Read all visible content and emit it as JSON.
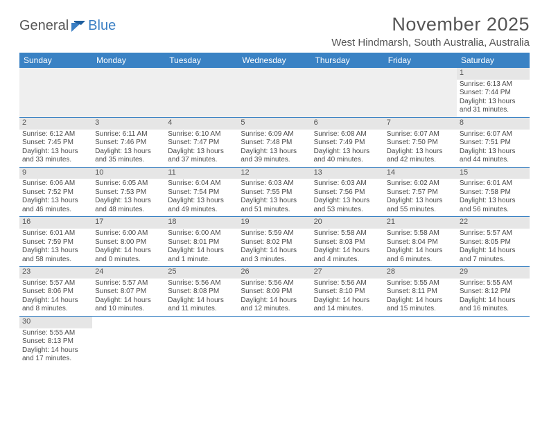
{
  "logo": {
    "text1": "General",
    "text2": "Blue"
  },
  "title": "November 2025",
  "location": "West Hindmarsh, South Australia, Australia",
  "dayNames": [
    "Sunday",
    "Monday",
    "Tuesday",
    "Wednesday",
    "Thursday",
    "Friday",
    "Saturday"
  ],
  "colors": {
    "header_bg": "#3a82c4",
    "header_text": "#ffffff",
    "title_text": "#555555",
    "body_text": "#4a4a4a",
    "daynum_bg": "#e6e6e6",
    "blank_bg": "#efefef",
    "border": "#3a82c4"
  },
  "weeks": [
    [
      {
        "blank": true
      },
      {
        "blank": true
      },
      {
        "blank": true
      },
      {
        "blank": true
      },
      {
        "blank": true
      },
      {
        "blank": true
      },
      {
        "day": "1",
        "sunrise": "Sunrise: 6:13 AM",
        "sunset": "Sunset: 7:44 PM",
        "daylight": "Daylight: 13 hours and 31 minutes."
      }
    ],
    [
      {
        "day": "2",
        "sunrise": "Sunrise: 6:12 AM",
        "sunset": "Sunset: 7:45 PM",
        "daylight": "Daylight: 13 hours and 33 minutes."
      },
      {
        "day": "3",
        "sunrise": "Sunrise: 6:11 AM",
        "sunset": "Sunset: 7:46 PM",
        "daylight": "Daylight: 13 hours and 35 minutes."
      },
      {
        "day": "4",
        "sunrise": "Sunrise: 6:10 AM",
        "sunset": "Sunset: 7:47 PM",
        "daylight": "Daylight: 13 hours and 37 minutes."
      },
      {
        "day": "5",
        "sunrise": "Sunrise: 6:09 AM",
        "sunset": "Sunset: 7:48 PM",
        "daylight": "Daylight: 13 hours and 39 minutes."
      },
      {
        "day": "6",
        "sunrise": "Sunrise: 6:08 AM",
        "sunset": "Sunset: 7:49 PM",
        "daylight": "Daylight: 13 hours and 40 minutes."
      },
      {
        "day": "7",
        "sunrise": "Sunrise: 6:07 AM",
        "sunset": "Sunset: 7:50 PM",
        "daylight": "Daylight: 13 hours and 42 minutes."
      },
      {
        "day": "8",
        "sunrise": "Sunrise: 6:07 AM",
        "sunset": "Sunset: 7:51 PM",
        "daylight": "Daylight: 13 hours and 44 minutes."
      }
    ],
    [
      {
        "day": "9",
        "sunrise": "Sunrise: 6:06 AM",
        "sunset": "Sunset: 7:52 PM",
        "daylight": "Daylight: 13 hours and 46 minutes."
      },
      {
        "day": "10",
        "sunrise": "Sunrise: 6:05 AM",
        "sunset": "Sunset: 7:53 PM",
        "daylight": "Daylight: 13 hours and 48 minutes."
      },
      {
        "day": "11",
        "sunrise": "Sunrise: 6:04 AM",
        "sunset": "Sunset: 7:54 PM",
        "daylight": "Daylight: 13 hours and 49 minutes."
      },
      {
        "day": "12",
        "sunrise": "Sunrise: 6:03 AM",
        "sunset": "Sunset: 7:55 PM",
        "daylight": "Daylight: 13 hours and 51 minutes."
      },
      {
        "day": "13",
        "sunrise": "Sunrise: 6:03 AM",
        "sunset": "Sunset: 7:56 PM",
        "daylight": "Daylight: 13 hours and 53 minutes."
      },
      {
        "day": "14",
        "sunrise": "Sunrise: 6:02 AM",
        "sunset": "Sunset: 7:57 PM",
        "daylight": "Daylight: 13 hours and 55 minutes."
      },
      {
        "day": "15",
        "sunrise": "Sunrise: 6:01 AM",
        "sunset": "Sunset: 7:58 PM",
        "daylight": "Daylight: 13 hours and 56 minutes."
      }
    ],
    [
      {
        "day": "16",
        "sunrise": "Sunrise: 6:01 AM",
        "sunset": "Sunset: 7:59 PM",
        "daylight": "Daylight: 13 hours and 58 minutes."
      },
      {
        "day": "17",
        "sunrise": "Sunrise: 6:00 AM",
        "sunset": "Sunset: 8:00 PM",
        "daylight": "Daylight: 14 hours and 0 minutes."
      },
      {
        "day": "18",
        "sunrise": "Sunrise: 6:00 AM",
        "sunset": "Sunset: 8:01 PM",
        "daylight": "Daylight: 14 hours and 1 minute."
      },
      {
        "day": "19",
        "sunrise": "Sunrise: 5:59 AM",
        "sunset": "Sunset: 8:02 PM",
        "daylight": "Daylight: 14 hours and 3 minutes."
      },
      {
        "day": "20",
        "sunrise": "Sunrise: 5:58 AM",
        "sunset": "Sunset: 8:03 PM",
        "daylight": "Daylight: 14 hours and 4 minutes."
      },
      {
        "day": "21",
        "sunrise": "Sunrise: 5:58 AM",
        "sunset": "Sunset: 8:04 PM",
        "daylight": "Daylight: 14 hours and 6 minutes."
      },
      {
        "day": "22",
        "sunrise": "Sunrise: 5:57 AM",
        "sunset": "Sunset: 8:05 PM",
        "daylight": "Daylight: 14 hours and 7 minutes."
      }
    ],
    [
      {
        "day": "23",
        "sunrise": "Sunrise: 5:57 AM",
        "sunset": "Sunset: 8:06 PM",
        "daylight": "Daylight: 14 hours and 8 minutes."
      },
      {
        "day": "24",
        "sunrise": "Sunrise: 5:57 AM",
        "sunset": "Sunset: 8:07 PM",
        "daylight": "Daylight: 14 hours and 10 minutes."
      },
      {
        "day": "25",
        "sunrise": "Sunrise: 5:56 AM",
        "sunset": "Sunset: 8:08 PM",
        "daylight": "Daylight: 14 hours and 11 minutes."
      },
      {
        "day": "26",
        "sunrise": "Sunrise: 5:56 AM",
        "sunset": "Sunset: 8:09 PM",
        "daylight": "Daylight: 14 hours and 12 minutes."
      },
      {
        "day": "27",
        "sunrise": "Sunrise: 5:56 AM",
        "sunset": "Sunset: 8:10 PM",
        "daylight": "Daylight: 14 hours and 14 minutes."
      },
      {
        "day": "28",
        "sunrise": "Sunrise: 5:55 AM",
        "sunset": "Sunset: 8:11 PM",
        "daylight": "Daylight: 14 hours and 15 minutes."
      },
      {
        "day": "29",
        "sunrise": "Sunrise: 5:55 AM",
        "sunset": "Sunset: 8:12 PM",
        "daylight": "Daylight: 14 hours and 16 minutes."
      }
    ],
    [
      {
        "day": "30",
        "sunrise": "Sunrise: 5:55 AM",
        "sunset": "Sunset: 8:13 PM",
        "daylight": "Daylight: 14 hours and 17 minutes."
      },
      {
        "blank": true
      },
      {
        "blank": true
      },
      {
        "blank": true
      },
      {
        "blank": true
      },
      {
        "blank": true
      },
      {
        "blank": true
      }
    ]
  ]
}
